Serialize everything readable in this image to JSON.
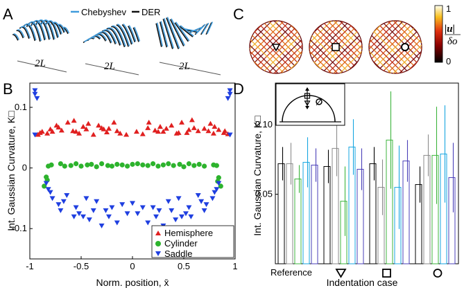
{
  "panels": {
    "A": {
      "label": "A",
      "legend": [
        {
          "name": "Chebyshev",
          "color": "#3f9bdc"
        },
        {
          "name": "DER",
          "color": "#111111"
        }
      ],
      "dim_label": "2L"
    },
    "B": {
      "label": "B"
    },
    "C": {
      "label": "C",
      "colorbar": {
        "max_label": "1",
        "min_label": "0",
        "num": "|u|",
        "den": "δo"
      },
      "markers": [
        "triangle-down",
        "square",
        "circle"
      ]
    },
    "D": {
      "label": "D"
    }
  },
  "chart_data": [
    {
      "type": "scatter",
      "panel": "B",
      "ylabel": "Int. Gaussian Curvature, K□",
      "xlabel": "Norm. position, x̄",
      "xlim": [
        -1,
        1
      ],
      "ylim": [
        -0.15,
        0.14
      ],
      "xticks": [
        -1,
        -0.5,
        0,
        0.5,
        1
      ],
      "xtick_labels": [
        "-1",
        "-0.5",
        "0",
        "0.5",
        "1"
      ],
      "yticks": [
        0.1,
        0,
        -0.1
      ],
      "ytick_labels": [
        "0.1",
        "0",
        "-0.1"
      ],
      "legend_position": "bottom-right",
      "series": [
        {
          "name": "Hemisphere",
          "color": "#e02020",
          "marker": "triangle-up",
          "x": [
            -0.92,
            -0.88,
            -0.83,
            -0.78,
            -0.74,
            -0.69,
            -0.63,
            -0.57,
            -0.52,
            -0.48,
            -0.43,
            -0.38,
            -0.33,
            -0.28,
            -0.23,
            -0.18,
            -0.12,
            -0.06,
            0.04,
            0.1,
            0.16,
            0.22,
            0.27,
            0.33,
            0.38,
            0.43,
            0.48,
            0.53,
            0.58,
            0.64,
            0.7,
            0.74,
            0.79,
            0.84,
            0.89,
            0.93,
            -0.9,
            -0.72,
            -0.58,
            -0.45,
            -0.3,
            -0.15,
            0.15,
            0.3,
            0.45,
            0.6,
            0.76,
            0.9,
            -0.8,
            -0.55,
            -0.25,
            0.25,
            0.55,
            0.8
          ],
          "y": [
            0.055,
            0.06,
            0.057,
            0.06,
            0.07,
            0.062,
            0.075,
            0.078,
            0.057,
            0.068,
            0.073,
            0.055,
            0.07,
            0.064,
            0.065,
            0.075,
            0.057,
            0.055,
            0.06,
            0.056,
            0.075,
            0.062,
            0.068,
            0.065,
            0.07,
            0.057,
            0.075,
            0.058,
            0.079,
            0.061,
            0.065,
            0.061,
            0.057,
            0.063,
            0.058,
            0.056,
            0.058,
            0.067,
            0.061,
            0.064,
            0.066,
            0.061,
            0.066,
            0.06,
            0.058,
            0.066,
            0.073,
            0.061,
            0.064,
            0.06,
            0.059,
            0.06,
            0.063,
            0.068
          ]
        },
        {
          "name": "Cylinder",
          "color": "#2db32d",
          "marker": "circle",
          "x": [
            -0.82,
            -0.79,
            -0.7,
            -0.66,
            -0.6,
            -0.55,
            -0.5,
            -0.44,
            -0.4,
            -0.35,
            -0.3,
            -0.24,
            -0.2,
            -0.15,
            -0.1,
            -0.05,
            0,
            0.05,
            0.1,
            0.15,
            0.2,
            0.25,
            0.3,
            0.35,
            0.4,
            0.46,
            0.5,
            0.55,
            0.6,
            0.65,
            0.7,
            0.79,
            0.82,
            -0.84,
            0.84,
            -0.83,
            0.83,
            -0.86,
            0.86
          ],
          "y": [
            0.003,
            0.005,
            0.007,
            0.003,
            0.004,
            0.007,
            0.003,
            0.005,
            0.006,
            0.002,
            0.007,
            0.004,
            0.003,
            0.006,
            0.005,
            0.003,
            0.006,
            0.007,
            0.005,
            0.004,
            0.007,
            0.003,
            0.005,
            0.007,
            0.004,
            0.006,
            0.002,
            0.007,
            0.004,
            0.006,
            0.003,
            0.005,
            0.004,
            -0.015,
            -0.016,
            -0.02,
            -0.022,
            -0.03,
            -0.03
          ]
        },
        {
          "name": "Saddle",
          "color": "#1f3fe0",
          "marker": "triangle-down",
          "x": [
            -0.95,
            -0.95,
            -0.93,
            0.95,
            0.95,
            0.93,
            -0.95,
            0.95,
            -0.84,
            -0.82,
            -0.8,
            -0.78,
            -0.72,
            -0.7,
            -0.67,
            -0.64,
            -0.55,
            -0.52,
            -0.48,
            -0.45,
            -0.42,
            -0.35,
            -0.3,
            -0.26,
            -0.23,
            -0.15,
            -0.1,
            -0.05,
            0,
            0.05,
            0.1,
            0.15,
            0.23,
            0.26,
            0.3,
            0.35,
            0.42,
            0.45,
            0.48,
            0.52,
            0.55,
            0.64,
            0.67,
            0.7,
            0.72,
            0.78,
            0.8,
            0.82,
            0.84,
            -0.57,
            -0.38,
            -0.2,
            0.2,
            0.38,
            0.57
          ],
          "y": [
            0.128,
            0.122,
            0.115,
            0.128,
            0.122,
            0.115,
            0.055,
            0.055,
            -0.025,
            -0.035,
            -0.04,
            -0.05,
            -0.06,
            -0.07,
            -0.055,
            -0.045,
            -0.065,
            -0.075,
            -0.08,
            -0.05,
            -0.085,
            -0.055,
            -0.095,
            -0.07,
            -0.08,
            -0.09,
            -0.06,
            -0.075,
            -0.058,
            -0.075,
            -0.065,
            -0.09,
            -0.08,
            -0.07,
            -0.095,
            -0.055,
            -0.085,
            -0.05,
            -0.08,
            -0.075,
            -0.065,
            -0.045,
            -0.055,
            -0.07,
            -0.06,
            -0.05,
            -0.04,
            -0.035,
            -0.025,
            -0.08,
            -0.07,
            -0.065,
            -0.065,
            -0.07,
            -0.08
          ]
        }
      ]
    },
    {
      "type": "bar",
      "panel": "D",
      "ylabel": "Int. Gaussian Curvature, K□",
      "xlabel": "Indentation case",
      "ylim": [
        0,
        0.13
      ],
      "yticks": [
        0.05,
        0.1
      ],
      "ytick_labels": [
        "0.05",
        "0.10"
      ],
      "categories": [
        "Reference",
        "▽",
        "□",
        "○"
      ],
      "bar_colors": [
        "#000000",
        "#8a8a8a",
        "#3cb43c",
        "#16a6e0",
        "#4a3fb8"
      ],
      "series": [
        {
          "values": [
            0.072,
            0.07,
            0.072,
            0.057
          ],
          "err": [
            0.012,
            0.012,
            0.012,
            0.013
          ]
        },
        {
          "values": [
            0.072,
            0.083,
            0.055,
            0.078
          ],
          "err": [
            0.015,
            0.02,
            0.02,
            0.015
          ]
        },
        {
          "values": [
            0.061,
            0.045,
            0.089,
            0.078
          ],
          "err": [
            0.01,
            0.025,
            0.035,
            0.035
          ]
        },
        {
          "values": [
            0.073,
            0.084,
            0.055,
            0.079
          ],
          "err": [
            0.018,
            0.02,
            0.03,
            0.035
          ]
        },
        {
          "values": [
            0.071,
            0.068,
            0.074,
            0.062
          ],
          "err": [
            0.012,
            0.015,
            0.015,
            0.025
          ]
        }
      ]
    }
  ]
}
